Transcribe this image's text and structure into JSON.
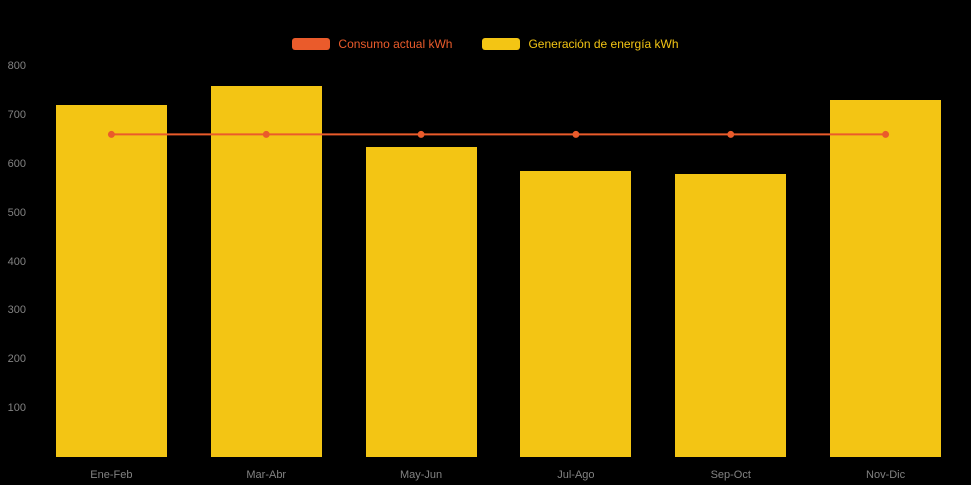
{
  "chart": {
    "background": "#000000",
    "axis_label_color": "#828282"
  },
  "chart_data": {
    "type": "bar",
    "title": "",
    "categories": [
      "Ene-Feb",
      "Mar-Abr",
      "May-Jun",
      "Jul-Ago",
      "Sep-Oct",
      "Nov-Dic"
    ],
    "series": [
      {
        "name": "Consumo actual kWh",
        "type": "line",
        "color": "#EA5B2B",
        "values": [
          660,
          660,
          660,
          660,
          660,
          660
        ]
      },
      {
        "name": "Generación de energía kWh",
        "type": "bar",
        "color": "#F3C514",
        "values": [
          720,
          760,
          635,
          585,
          580,
          730
        ]
      }
    ],
    "xlabel": "",
    "ylabel": "",
    "ylim": [
      0,
      800
    ],
    "yticks": [
      100,
      200,
      300,
      400,
      500,
      600,
      700,
      800
    ],
    "grid": false,
    "legend_position": "top",
    "background": "#000000"
  }
}
